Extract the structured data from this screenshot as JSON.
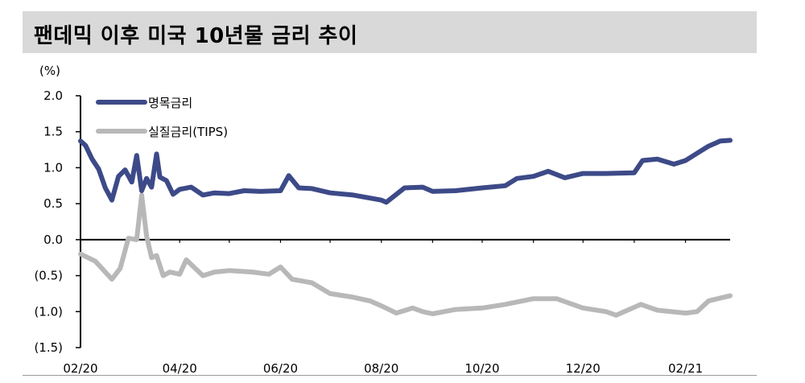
{
  "title": "팬데믹 이후 미국 10년물 금리 추이",
  "chart_data": {
    "type": "line",
    "title": "팬데믹 이후 미국 10년물 금리 추이",
    "ylabel": "(%)",
    "ylim": [
      -1.5,
      2.0
    ],
    "yticks": [
      2.0,
      1.5,
      1.0,
      0.5,
      0.0,
      -0.5,
      -1.0,
      -1.5
    ],
    "ytick_labels": [
      "2.0",
      "1.5",
      "1.0",
      "0.5",
      "0.0",
      "(0.5)",
      "(1.0)",
      "(1.5)"
    ],
    "xlim": [
      "2020-02-01",
      "2021-02-28"
    ],
    "xtick_labels": [
      {
        "label": "02/20",
        "date": "2020-02-01"
      },
      {
        "label": "04/20",
        "date": "2020-04-01"
      },
      {
        "label": "06/20",
        "date": "2020-06-01"
      },
      {
        "label": "08/20",
        "date": "2020-08-01"
      },
      {
        "label": "10/20",
        "date": "2020-10-01"
      },
      {
        "label": "12/20",
        "date": "2020-12-01"
      },
      {
        "label": "02/21",
        "date": "2021-02-01"
      }
    ],
    "legend_position": "top-left",
    "series": [
      {
        "name": "명목금리",
        "color": "#3d4a88",
        "x": [
          "2020-02-01",
          "2020-02-04",
          "2020-02-08",
          "2020-02-12",
          "2020-02-16",
          "2020-02-20",
          "2020-02-24",
          "2020-02-28",
          "2020-03-03",
          "2020-03-06",
          "2020-03-09",
          "2020-03-12",
          "2020-03-15",
          "2020-03-18",
          "2020-03-20",
          "2020-03-24",
          "2020-03-28",
          "2020-04-01",
          "2020-04-08",
          "2020-04-15",
          "2020-04-22",
          "2020-05-01",
          "2020-05-10",
          "2020-05-20",
          "2020-06-01",
          "2020-06-06",
          "2020-06-12",
          "2020-06-20",
          "2020-07-01",
          "2020-07-15",
          "2020-08-01",
          "2020-08-04",
          "2020-08-15",
          "2020-08-26",
          "2020-09-01",
          "2020-09-15",
          "2020-10-01",
          "2020-10-15",
          "2020-10-22",
          "2020-11-01",
          "2020-11-10",
          "2020-11-20",
          "2020-12-01",
          "2020-12-15",
          "2021-01-01",
          "2021-01-06",
          "2021-01-15",
          "2021-01-25",
          "2021-02-01",
          "2021-02-08",
          "2021-02-15",
          "2021-02-22",
          "2021-02-28"
        ],
        "values": [
          1.37,
          1.31,
          1.12,
          0.98,
          0.72,
          0.55,
          0.88,
          0.97,
          0.8,
          1.17,
          0.68,
          0.85,
          0.73,
          1.19,
          0.87,
          0.82,
          0.63,
          0.7,
          0.73,
          0.62,
          0.65,
          0.64,
          0.68,
          0.67,
          0.68,
          0.89,
          0.72,
          0.71,
          0.65,
          0.62,
          0.55,
          0.52,
          0.72,
          0.73,
          0.67,
          0.68,
          0.72,
          0.75,
          0.85,
          0.88,
          0.95,
          0.86,
          0.92,
          0.92,
          0.93,
          1.1,
          1.12,
          1.05,
          1.1,
          1.2,
          1.3,
          1.37,
          1.38
        ]
      },
      {
        "name": "실질금리(TIPS)",
        "color": "#b8b8b8",
        "x": [
          "2020-02-01",
          "2020-02-10",
          "2020-02-20",
          "2020-02-25",
          "2020-03-01",
          "2020-03-06",
          "2020-03-09",
          "2020-03-12",
          "2020-03-15",
          "2020-03-18",
          "2020-03-22",
          "2020-03-26",
          "2020-04-01",
          "2020-04-05",
          "2020-04-15",
          "2020-04-22",
          "2020-05-01",
          "2020-05-15",
          "2020-05-25",
          "2020-06-01",
          "2020-06-08",
          "2020-06-20",
          "2020-07-01",
          "2020-07-15",
          "2020-07-25",
          "2020-08-01",
          "2020-08-10",
          "2020-08-20",
          "2020-08-26",
          "2020-09-01",
          "2020-09-15",
          "2020-10-01",
          "2020-10-15",
          "2020-11-01",
          "2020-11-15",
          "2020-12-01",
          "2020-12-15",
          "2020-12-21",
          "2021-01-05",
          "2021-01-15",
          "2021-02-01",
          "2021-02-08",
          "2021-02-15",
          "2021-02-28"
        ],
        "values": [
          -0.2,
          -0.3,
          -0.55,
          -0.4,
          0.02,
          0.0,
          0.62,
          0.05,
          -0.25,
          -0.22,
          -0.5,
          -0.45,
          -0.48,
          -0.28,
          -0.5,
          -0.45,
          -0.43,
          -0.45,
          -0.48,
          -0.38,
          -0.55,
          -0.6,
          -0.75,
          -0.8,
          -0.85,
          -0.92,
          -1.02,
          -0.95,
          -1.0,
          -1.03,
          -0.97,
          -0.95,
          -0.9,
          -0.82,
          -0.82,
          -0.95,
          -1.0,
          -1.05,
          -0.9,
          -0.98,
          -1.02,
          -1.0,
          -0.85,
          -0.78
        ]
      }
    ]
  }
}
